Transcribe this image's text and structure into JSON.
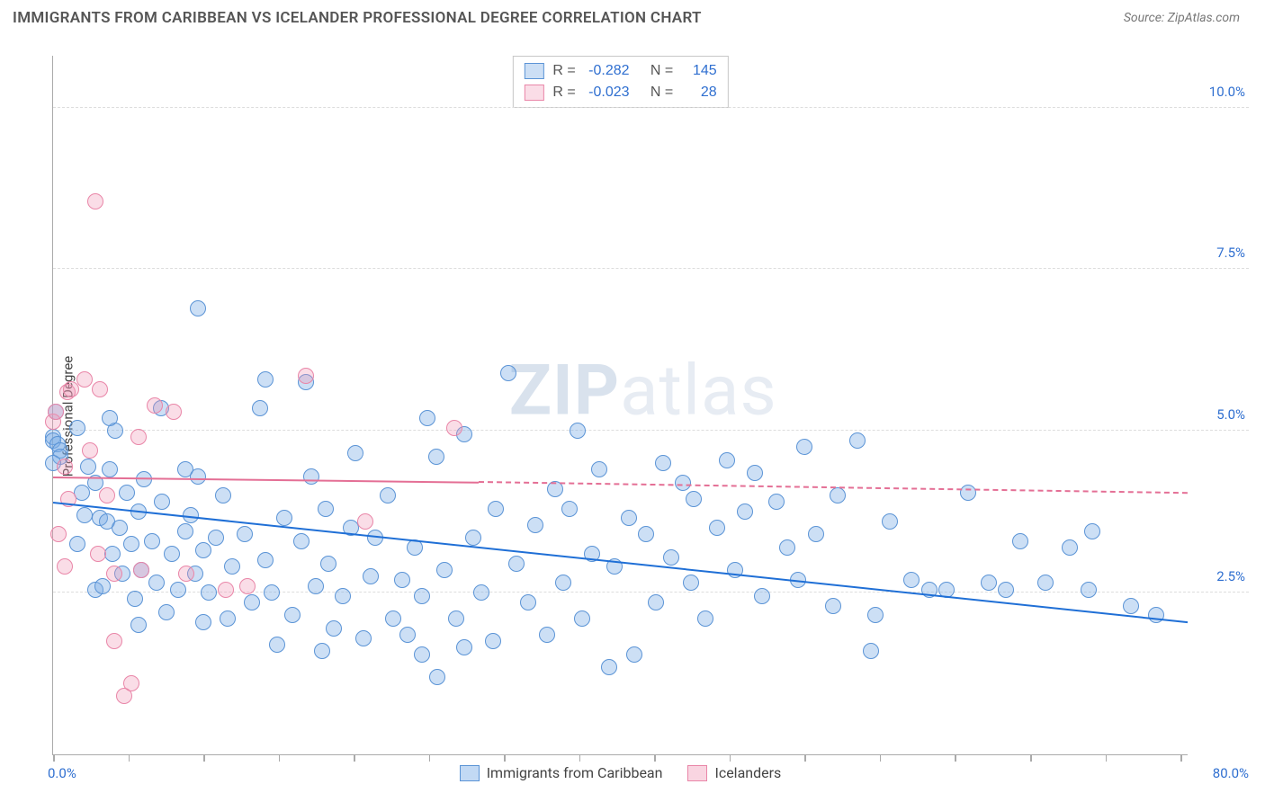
{
  "title": "IMMIGRANTS FROM CARIBBEAN VS ICELANDER PROFESSIONAL DEGREE CORRELATION CHART",
  "source_prefix": "Source: ",
  "source_name": "ZipAtlas.com",
  "ylabel": "Professional Degree",
  "watermark_a": "ZIP",
  "watermark_b": "atlas",
  "chart": {
    "type": "scatter",
    "background_color": "#ffffff",
    "grid_color": "#dddddd",
    "axis_color": "#aaaaaa",
    "xlim": [
      0,
      80
    ],
    "ylim": [
      0,
      10.8
    ],
    "x_label_min": "0.0%",
    "x_label_max": "80.0%",
    "x_label_color": "#2f6fd0",
    "xticks": [
      0,
      5.3,
      10.6,
      15.9,
      21.2,
      26.5,
      31.8,
      37.1,
      42.4,
      47.7,
      53.0,
      58.3,
      63.6,
      68.9,
      74.2,
      79.5
    ],
    "y_gridlines": [
      2.5,
      5.0,
      7.5,
      10.0
    ],
    "y_grid_labels": [
      "2.5%",
      "5.0%",
      "7.5%",
      "10.0%"
    ],
    "y_label_color": "#2f6fd0",
    "point_radius": 9,
    "point_border_width": 1.2,
    "series": [
      {
        "name": "Immigrants from Caribbean",
        "fill": "rgba(120,170,230,0.38)",
        "stroke": "#5b94d6",
        "stats_R": "-0.282",
        "stats_N": "145",
        "trend": {
          "x0": 0,
          "y0": 3.9,
          "x1": 80,
          "y1": 2.05,
          "color": "#1f6fd6",
          "width": 2.2,
          "dash": "none"
        },
        "points": [
          [
            0,
            4.9
          ],
          [
            0,
            4.85
          ],
          [
            0.3,
            4.8
          ],
          [
            0.2,
            5.3
          ],
          [
            0.5,
            4.7
          ],
          [
            0.5,
            4.6
          ],
          [
            0,
            4.5
          ],
          [
            1.7,
            5.05
          ],
          [
            2.0,
            4.05
          ],
          [
            2.5,
            4.45
          ],
          [
            1.7,
            3.25
          ],
          [
            2.2,
            3.7
          ],
          [
            3.0,
            4.2
          ],
          [
            3.3,
            3.65
          ],
          [
            3.8,
            3.6
          ],
          [
            3.0,
            2.55
          ],
          [
            3.5,
            2.6
          ],
          [
            4.2,
            3.1
          ],
          [
            4.0,
            4.4
          ],
          [
            4.4,
            5.0
          ],
          [
            4.7,
            3.5
          ],
          [
            4.9,
            2.8
          ],
          [
            5.2,
            4.05
          ],
          [
            5.5,
            3.25
          ],
          [
            5.8,
            2.4
          ],
          [
            6.0,
            3.75
          ],
          [
            6.2,
            2.85
          ],
          [
            6.4,
            4.25
          ],
          [
            6.0,
            2.0
          ],
          [
            7.0,
            3.3
          ],
          [
            7.3,
            2.65
          ],
          [
            7.7,
            3.9
          ],
          [
            8.0,
            2.2
          ],
          [
            8.4,
            3.1
          ],
          [
            8.8,
            2.55
          ],
          [
            9.3,
            3.45
          ],
          [
            9.3,
            4.4
          ],
          [
            9.7,
            3.7
          ],
          [
            10.0,
            2.8
          ],
          [
            10.2,
            4.3
          ],
          [
            10.2,
            6.9
          ],
          [
            10.6,
            3.15
          ],
          [
            10.6,
            2.05
          ],
          [
            11.0,
            2.5
          ],
          [
            11.5,
            3.35
          ],
          [
            12.0,
            4.0
          ],
          [
            12.3,
            2.1
          ],
          [
            12.6,
            2.9
          ],
          [
            13.5,
            3.4
          ],
          [
            14.0,
            2.35
          ],
          [
            14.6,
            5.35
          ],
          [
            15.0,
            5.8
          ],
          [
            15.0,
            3.0
          ],
          [
            15.4,
            2.5
          ],
          [
            15.8,
            1.7
          ],
          [
            16.3,
            3.65
          ],
          [
            16.9,
            2.15
          ],
          [
            17.5,
            3.3
          ],
          [
            17.8,
            5.75
          ],
          [
            18.2,
            4.3
          ],
          [
            18.5,
            2.6
          ],
          [
            19.0,
            1.6
          ],
          [
            19.2,
            3.8
          ],
          [
            19.4,
            2.95
          ],
          [
            19.8,
            1.95
          ],
          [
            20.4,
            2.45
          ],
          [
            21.0,
            3.5
          ],
          [
            21.3,
            4.65
          ],
          [
            21.9,
            1.8
          ],
          [
            22.4,
            2.75
          ],
          [
            22.7,
            3.35
          ],
          [
            23.6,
            4.0
          ],
          [
            24.0,
            2.1
          ],
          [
            24.6,
            2.7
          ],
          [
            25.0,
            1.85
          ],
          [
            25.5,
            3.2
          ],
          [
            26.0,
            1.55
          ],
          [
            26.0,
            2.45
          ],
          [
            26.4,
            5.2
          ],
          [
            27.0,
            4.6
          ],
          [
            27.1,
            1.2
          ],
          [
            27.6,
            2.85
          ],
          [
            28.4,
            2.1
          ],
          [
            29.0,
            4.95
          ],
          [
            29.0,
            1.65
          ],
          [
            29.6,
            3.35
          ],
          [
            30.2,
            2.5
          ],
          [
            31.0,
            1.75
          ],
          [
            31.2,
            3.8
          ],
          [
            32.1,
            5.9
          ],
          [
            32.7,
            2.95
          ],
          [
            33.5,
            2.35
          ],
          [
            34.0,
            3.55
          ],
          [
            34.8,
            1.85
          ],
          [
            35.4,
            4.1
          ],
          [
            36.0,
            2.65
          ],
          [
            36.4,
            3.8
          ],
          [
            37.0,
            5.0
          ],
          [
            37.3,
            2.1
          ],
          [
            38.0,
            3.1
          ],
          [
            38.5,
            4.4
          ],
          [
            39.2,
            1.35
          ],
          [
            39.6,
            2.9
          ],
          [
            40.6,
            3.65
          ],
          [
            41.0,
            1.55
          ],
          [
            41.8,
            3.4
          ],
          [
            42.5,
            2.35
          ],
          [
            43.0,
            4.5
          ],
          [
            43.6,
            3.05
          ],
          [
            44.4,
            4.2
          ],
          [
            45.0,
            2.65
          ],
          [
            45.2,
            3.95
          ],
          [
            46.0,
            2.1
          ],
          [
            46.8,
            3.5
          ],
          [
            47.5,
            4.55
          ],
          [
            48.1,
            2.85
          ],
          [
            48.8,
            3.75
          ],
          [
            49.5,
            4.35
          ],
          [
            50.0,
            2.45
          ],
          [
            51.0,
            3.9
          ],
          [
            51.8,
            3.2
          ],
          [
            52.5,
            2.7
          ],
          [
            53.0,
            4.75
          ],
          [
            53.8,
            3.4
          ],
          [
            55.0,
            2.3
          ],
          [
            55.3,
            4.0
          ],
          [
            56.7,
            4.85
          ],
          [
            57.7,
            1.6
          ],
          [
            58.0,
            2.15
          ],
          [
            59.0,
            3.6
          ],
          [
            60.5,
            2.7
          ],
          [
            61.8,
            2.55
          ],
          [
            63.0,
            2.55
          ],
          [
            64.5,
            4.05
          ],
          [
            66.0,
            2.65
          ],
          [
            67.2,
            2.55
          ],
          [
            68.2,
            3.3
          ],
          [
            70.0,
            2.65
          ],
          [
            71.7,
            3.2
          ],
          [
            73.0,
            2.55
          ],
          [
            73.3,
            3.45
          ],
          [
            76.0,
            2.3
          ],
          [
            77.8,
            2.15
          ],
          [
            4.0,
            5.2
          ],
          [
            7.6,
            5.35
          ]
        ]
      },
      {
        "name": "Icelanders",
        "fill": "rgba(240,150,180,0.32)",
        "stroke": "#e986a8",
        "stats_R": "-0.023",
        "stats_N": "28",
        "trend": {
          "x0": 0,
          "y0": 4.3,
          "x1": 30,
          "y1": 4.22,
          "color": "#e46f95",
          "width": 2.2,
          "dash": "none",
          "ext_x1": 80,
          "ext_y1": 4.05,
          "ext_dash": "5,5"
        },
        "points": [
          [
            0,
            5.15
          ],
          [
            0.2,
            5.3
          ],
          [
            0.8,
            4.45
          ],
          [
            1.0,
            5.6
          ],
          [
            1.3,
            5.65
          ],
          [
            1.1,
            3.95
          ],
          [
            0.8,
            2.9
          ],
          [
            0.4,
            3.4
          ],
          [
            2.2,
            5.8
          ],
          [
            2.6,
            4.7
          ],
          [
            3.0,
            8.55
          ],
          [
            3.3,
            5.65
          ],
          [
            3.2,
            3.1
          ],
          [
            3.8,
            4.0
          ],
          [
            4.3,
            1.75
          ],
          [
            4.3,
            2.8
          ],
          [
            5.0,
            0.9
          ],
          [
            5.5,
            1.1
          ],
          [
            6.0,
            4.9
          ],
          [
            6.2,
            2.85
          ],
          [
            7.2,
            5.4
          ],
          [
            8.5,
            5.3
          ],
          [
            9.4,
            2.8
          ],
          [
            12.2,
            2.55
          ],
          [
            13.7,
            2.6
          ],
          [
            17.8,
            5.85
          ],
          [
            22.0,
            3.6
          ],
          [
            28.3,
            5.05
          ]
        ]
      }
    ]
  },
  "legend": {
    "items": [
      {
        "label": "Immigrants from Caribbean",
        "fill": "rgba(120,170,230,0.45)",
        "stroke": "#5b94d6"
      },
      {
        "label": "Icelanders",
        "fill": "rgba(240,150,180,0.4)",
        "stroke": "#e986a8"
      }
    ]
  }
}
